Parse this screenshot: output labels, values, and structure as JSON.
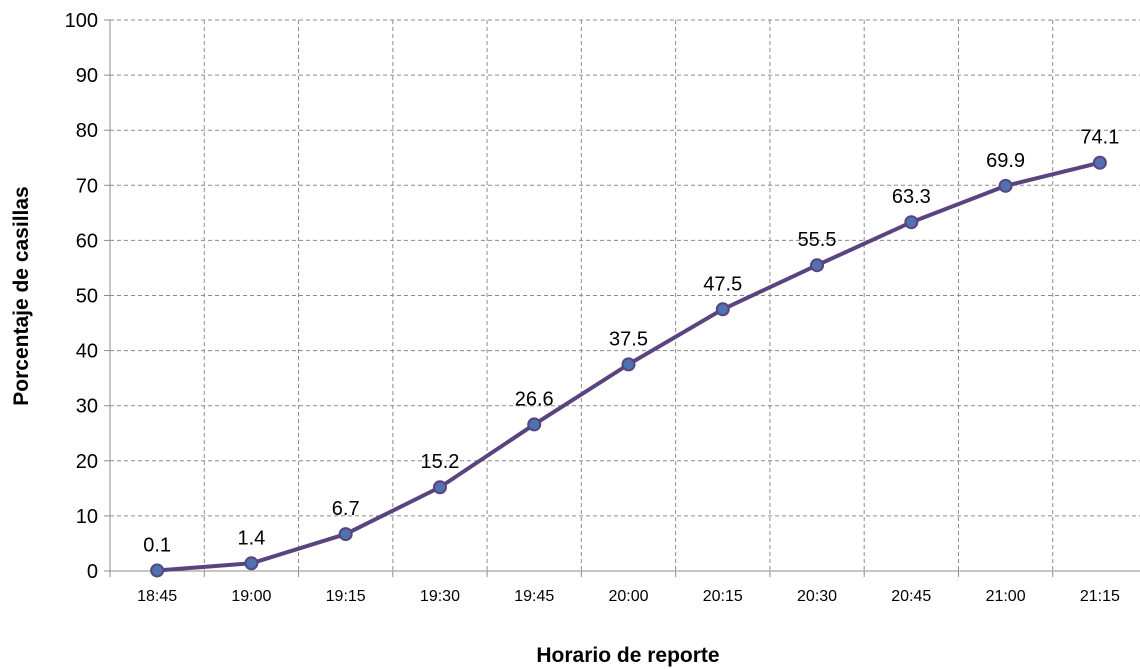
{
  "chart_data": {
    "type": "line",
    "categories": [
      "18:45",
      "19:00",
      "19:15",
      "19:30",
      "19:45",
      "20:00",
      "20:15",
      "20:30",
      "20:45",
      "21:00",
      "21:15"
    ],
    "series": [
      {
        "values": [
          0.1,
          1.4,
          6.7,
          15.2,
          26.6,
          37.5,
          47.5,
          55.5,
          63.3,
          69.9,
          74.1
        ],
        "labels": [
          "0.1",
          "1.4",
          "6.7",
          "15.2",
          "26.6",
          "37.5",
          "47.5",
          "55.5",
          "63.3",
          "69.9",
          "74.1"
        ]
      }
    ],
    "xlabel": "Horario de reporte",
    "ylabel": "Porcentaje de casillas",
    "ylim": [
      0,
      100
    ],
    "yticks": [
      0,
      10,
      20,
      30,
      40,
      50,
      60,
      70,
      80,
      90,
      100
    ],
    "grid": true,
    "data_labels": true,
    "colors": {
      "line": "#5a4480",
      "marker_fill": "#4f73b0",
      "marker_stroke": "#5a4480"
    }
  }
}
